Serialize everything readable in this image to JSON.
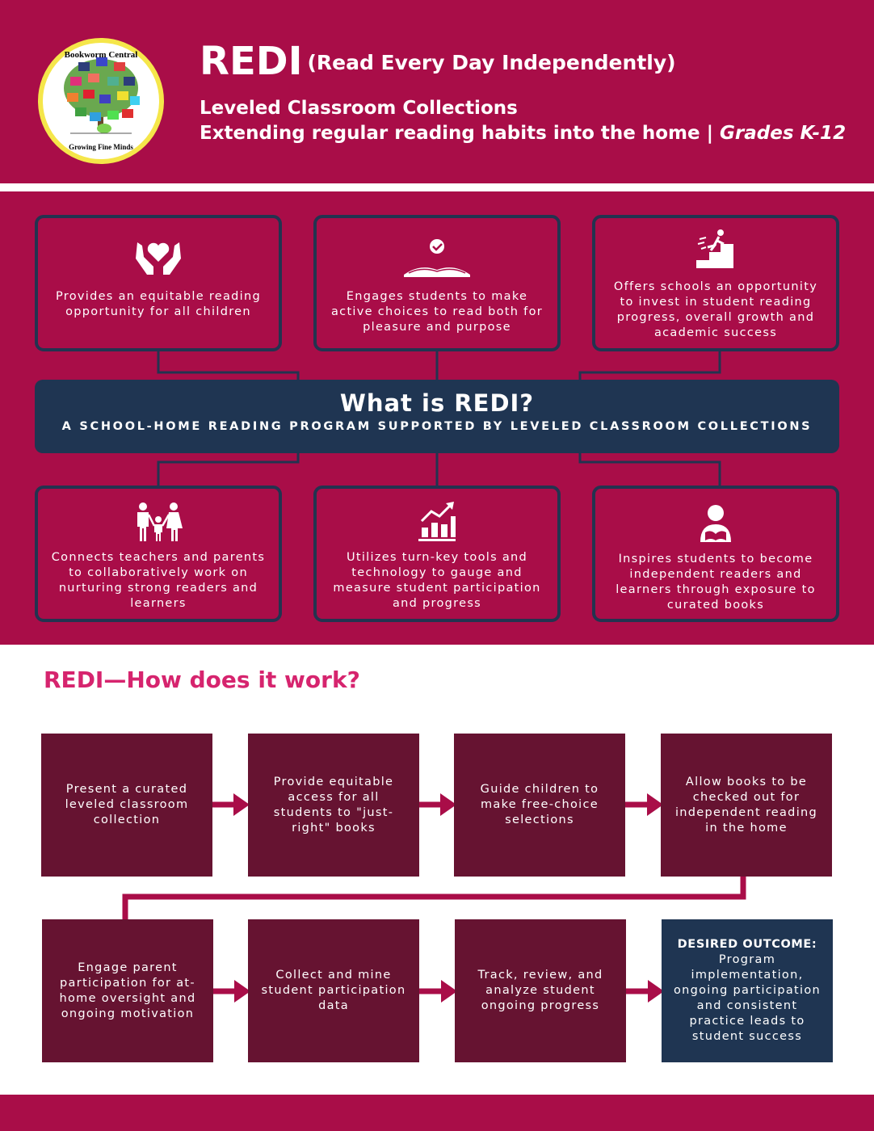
{
  "colors": {
    "brand": "#a90d48",
    "navy": "#1f3552",
    "maroon": "#661331",
    "heading": "#d6246e"
  },
  "logo": {
    "top_text": "Bookworm Central",
    "bottom_text": "Growing Fine Minds"
  },
  "header": {
    "title": "REDI",
    "title_expansion": "(Read Every Day Independently)",
    "line1": "Leveled Classroom Collections",
    "line2": "Extending regular reading habits into the home | ",
    "grades": "Grades K-12"
  },
  "benefits_top": [
    {
      "icon": "heart-hands-icon",
      "text": "Provides an equitable reading opportunity for all children"
    },
    {
      "icon": "open-book-check-icon",
      "text": "Engages students to make active choices to read both for pleasure and purpose"
    },
    {
      "icon": "climbing-stairs-icon",
      "text": "Offers schools an opportunity to invest in student reading progress, overall growth and academic success"
    }
  ],
  "banner": {
    "title": "What is REDI?",
    "subtitle": "A SCHOOL-HOME READING PROGRAM SUPPORTED BY LEVELED CLASSROOM COLLECTIONS"
  },
  "benefits_bottom": [
    {
      "icon": "family-icon",
      "text": "Connects teachers and parents to collaboratively work on nurturing strong readers and learners"
    },
    {
      "icon": "growth-chart-icon",
      "text": "Utilizes turn-key tools and technology to gauge and measure student participation and progress"
    },
    {
      "icon": "reader-icon",
      "text": "Inspires students to become independent readers and learners through exposure to curated books"
    }
  ],
  "how": {
    "heading": "REDI—How does it work?",
    "steps": [
      "Present a curated leveled classroom collection",
      "Provide equitable access for all students to \"just-right\" books",
      "Guide children to make free-choice selections",
      "Allow books to be checked out for independent reading in the home",
      "Engage parent participation for at-home oversight and ongoing motivation",
      "Collect and mine student participation data",
      "Track, review, and analyze student ongoing progress"
    ],
    "outcome_label": "DESIRED OUTCOME:",
    "outcome_text": "Program implementation, ongoing participation and consistent practice leads to student success"
  }
}
